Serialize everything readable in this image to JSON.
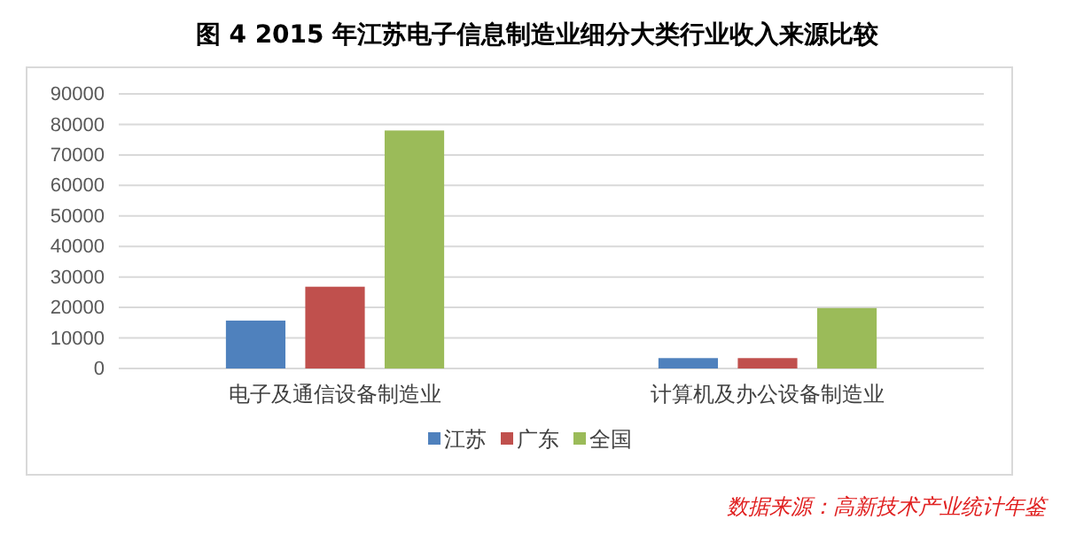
{
  "chart_data": {
    "type": "bar",
    "title": "图 4  2015 年江苏电子信息制造业细分大类行业收入来源比较",
    "categories": [
      "电子及通信设备制造业",
      "计算机及办公设备制造业"
    ],
    "series": [
      {
        "name": "江苏",
        "color": "#4f81bd",
        "values": [
          15700,
          3400
        ]
      },
      {
        "name": "广东",
        "color": "#c0504d",
        "values": [
          26800,
          3400
        ]
      },
      {
        "name": "全国",
        "color": "#9bbb59",
        "values": [
          78000,
          19800
        ]
      }
    ],
    "ylim": [
      0,
      90000
    ],
    "yticks": [
      0,
      10000,
      20000,
      30000,
      40000,
      50000,
      60000,
      70000,
      80000,
      90000
    ],
    "grid": "y",
    "legend": "bottom",
    "annotations": [
      "数据来源：高新技术产业统计年鉴"
    ]
  }
}
